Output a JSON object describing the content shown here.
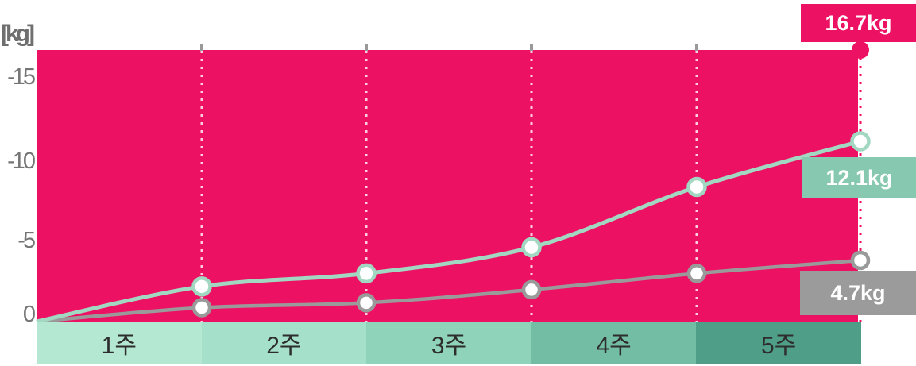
{
  "chart_data": {
    "type": "line",
    "title": "",
    "categories": [
      "1주",
      "2주",
      "3주",
      "4주",
      "5주"
    ],
    "xlabel": "",
    "ylabel": "[kg]",
    "y_axis": {
      "unit_label": "[kg]",
      "tick_labels": [
        "-15",
        "-10",
        "-5",
        "0"
      ],
      "tick_values": [
        -15,
        -10,
        -5,
        0
      ],
      "range_kg": [
        0,
        16.7
      ],
      "grid": "vertical dotted lines at each week boundary"
    },
    "legend_position": "end-of-line badges (right edge)",
    "series": [
      {
        "name": "result-top",
        "style": "filled-area-block",
        "color": "#ED1164",
        "values": [
          16.7,
          16.7,
          16.7,
          16.7,
          16.7
        ],
        "final_value_kg": 16.7,
        "end_label": "16.7kg"
      },
      {
        "name": "result-mid",
        "style": "line",
        "color": "#A2D7C1",
        "values": [
          2.2,
          3.0,
          4.6,
          8.3,
          11.1
        ],
        "final_value_kg": 12.1,
        "end_label": "12.1kg"
      },
      {
        "name": "result-low",
        "style": "line",
        "color": "#9A9A9A",
        "values": [
          0.9,
          1.2,
          2.0,
          3.0,
          3.8
        ],
        "final_value_kg": 4.7,
        "end_label": "4.7kg"
      }
    ]
  },
  "y_axis": {
    "unit_label": "[kg]",
    "tick_labels": [
      "-15",
      "-10",
      "-5",
      "0"
    ]
  },
  "badges": [
    {
      "label": "16.7kg",
      "color": "#ED1164"
    },
    {
      "label": "12.1kg",
      "color": "#87C8B0"
    },
    {
      "label": "4.7kg",
      "color": "#9B9B9B"
    }
  ],
  "x_bands": [
    {
      "label": "1주",
      "color": "#B5E8D2"
    },
    {
      "label": "2주",
      "color": "#A5E0CA"
    },
    {
      "label": "3주",
      "color": "#8FD3BB"
    },
    {
      "label": "4주",
      "color": "#73BDA4"
    },
    {
      "label": "5주",
      "color": "#4F9E88"
    }
  ],
  "colors": {
    "area_pink": "#ED1164",
    "line_teal": "#A2D7C1",
    "line_gray": "#9A9A9A",
    "marker_fill": "#FFFFFF",
    "gridline": "#FFFFFF",
    "top_tick": "#999999",
    "axis_text": "#757575"
  }
}
